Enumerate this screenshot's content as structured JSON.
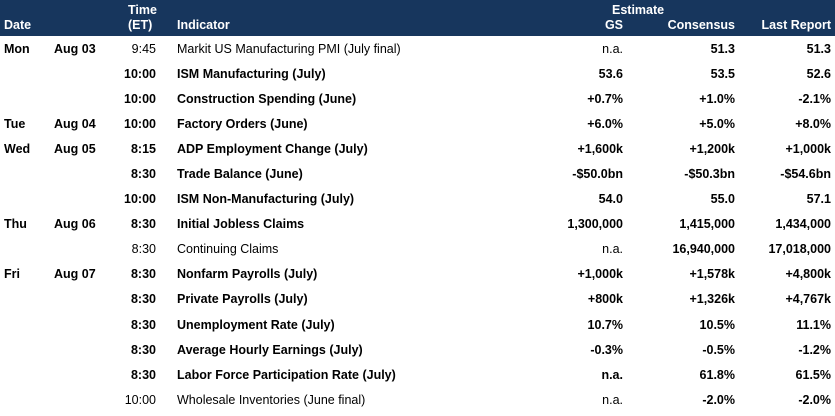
{
  "header": {
    "date": "Date",
    "time_line1": "Time",
    "time_line2": "(ET)",
    "indicator": "Indicator",
    "estimate": "Estimate",
    "gs": "GS",
    "consensus": "Consensus",
    "last_report": "Last Report"
  },
  "rows": [
    {
      "day": "Mon",
      "date": "Aug 03",
      "time": "9:45",
      "indicator": "Markit US Manufacturing PMI (July final)",
      "gs": "n.a.",
      "consensus": "51.3",
      "last": "51.3",
      "bold": false
    },
    {
      "day": "",
      "date": "",
      "time": "10:00",
      "indicator": "ISM Manufacturing (July)",
      "gs": "53.6",
      "consensus": "53.5",
      "last": "52.6",
      "bold": true
    },
    {
      "day": "",
      "date": "",
      "time": "10:00",
      "indicator": "Construction Spending (June)",
      "gs": "+0.7%",
      "consensus": "+1.0%",
      "last": "-2.1%",
      "bold": true
    },
    {
      "day": "Tue",
      "date": "Aug 04",
      "time": "10:00",
      "indicator": "Factory Orders (June)",
      "gs": "+6.0%",
      "consensus": "+5.0%",
      "last": "+8.0%",
      "bold": true
    },
    {
      "day": "Wed",
      "date": "Aug 05",
      "time": "8:15",
      "indicator": "ADP Employment Change (July)",
      "gs": "+1,600k",
      "consensus": "+1,200k",
      "last": "+1,000k",
      "bold": true
    },
    {
      "day": "",
      "date": "",
      "time": "8:30",
      "indicator": "Trade Balance (June)",
      "gs": "-$50.0bn",
      "consensus": "-$50.3bn",
      "last": "-$54.6bn",
      "bold": true
    },
    {
      "day": "",
      "date": "",
      "time": "10:00",
      "indicator": "ISM Non-Manufacturing (July)",
      "gs": "54.0",
      "consensus": "55.0",
      "last": "57.1",
      "bold": true
    },
    {
      "day": "Thu",
      "date": "Aug 06",
      "time": "8:30",
      "indicator": "Initial Jobless Claims",
      "gs": "1,300,000",
      "consensus": "1,415,000",
      "last": "1,434,000",
      "bold": true
    },
    {
      "day": "",
      "date": "",
      "time": "8:30",
      "indicator": "Continuing Claims",
      "gs": "n.a.",
      "consensus": "16,940,000",
      "last": "17,018,000",
      "bold": false
    },
    {
      "day": "Fri",
      "date": "Aug 07",
      "time": "8:30",
      "indicator": "Nonfarm Payrolls (July)",
      "gs": "+1,000k",
      "consensus": "+1,578k",
      "last": "+4,800k",
      "bold": true
    },
    {
      "day": "",
      "date": "",
      "time": "8:30",
      "indicator": "Private Payrolls (July)",
      "gs": "+800k",
      "consensus": "+1,326k",
      "last": "+4,767k",
      "bold": true
    },
    {
      "day": "",
      "date": "",
      "time": "8:30",
      "indicator": "Unemployment Rate (July)",
      "gs": "10.7%",
      "consensus": "10.5%",
      "last": "11.1%",
      "bold": true
    },
    {
      "day": "",
      "date": "",
      "time": "8:30",
      "indicator": "Average Hourly Earnings (July)",
      "gs": "-0.3%",
      "consensus": "-0.5%",
      "last": "-1.2%",
      "bold": true
    },
    {
      "day": "",
      "date": "",
      "time": "8:30",
      "indicator": "Labor Force Participation Rate (July)",
      "gs": "n.a.",
      "consensus": "61.8%",
      "last": "61.5%",
      "bold": true
    },
    {
      "day": "",
      "date": "",
      "time": "10:00",
      "indicator": "Wholesale Inventories (June final)",
      "gs": "n.a.",
      "consensus": "-2.0%",
      "last": "-2.0%",
      "bold": false
    }
  ]
}
